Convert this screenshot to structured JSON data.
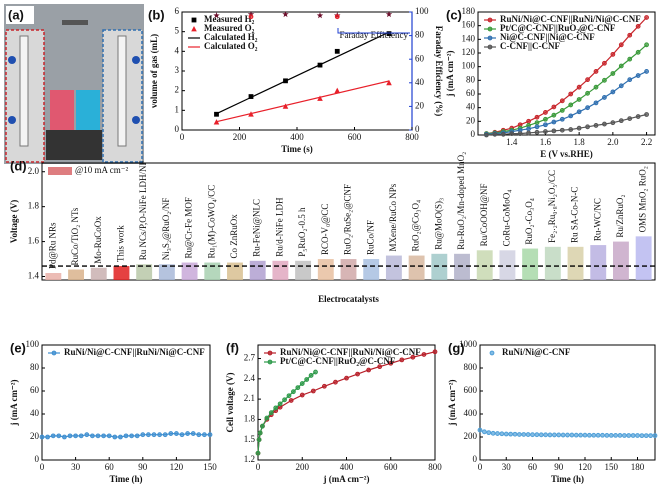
{
  "panel_a": {
    "label": "(a)"
  },
  "chart_data": [
    {
      "type": "line",
      "label": "(b)",
      "xlabel": "Time (s)",
      "ylabel": "volume of gas (mL)",
      "y2label": "Faraday Efficiency (%)",
      "annotation": "Faraday Efficiency",
      "xlim": [
        0,
        800
      ],
      "xticks": [
        0,
        200,
        400,
        600,
        800
      ],
      "ylim": [
        0,
        6
      ],
      "yticks": [
        0,
        1,
        2,
        3,
        4,
        5,
        6
      ],
      "y2lim": [
        0,
        100
      ],
      "y2ticks": [
        0,
        20,
        40,
        60,
        80,
        100
      ],
      "y2color": "#1f3fd0",
      "legend": "upper left",
      "series": [
        {
          "name": "Measured H₂",
          "color": "#000000",
          "mode": "markers",
          "marker": "square",
          "x": [
            120,
            240,
            360,
            480,
            540,
            720
          ],
          "values": [
            0.8,
            1.7,
            2.5,
            3.3,
            4.0,
            4.9
          ]
        },
        {
          "name": "Measured O₂",
          "color": "#e8202a",
          "mode": "markers",
          "marker": "triangle",
          "x": [
            120,
            240,
            360,
            480,
            540,
            720
          ],
          "values": [
            0.4,
            0.8,
            1.2,
            1.6,
            2.0,
            2.4
          ]
        },
        {
          "name": "Calculated H₂",
          "color": "#000000",
          "mode": "line",
          "x": [
            120,
            720
          ],
          "values": [
            0.83,
            4.98
          ]
        },
        {
          "name": "Calculated O₂",
          "color": "#e8202a",
          "mode": "line",
          "x": [
            120,
            720
          ],
          "values": [
            0.42,
            2.49
          ]
        },
        {
          "color": "#6b0d2a",
          "mode": "markers",
          "marker": "star",
          "axis": "y2",
          "x": [
            120,
            240,
            360,
            480,
            540,
            720
          ],
          "values": [
            97,
            98,
            98,
            97,
            97,
            98
          ]
        },
        {
          "color": "#e8202a",
          "mode": "markers",
          "marker": "circle",
          "axis": "y2",
          "x": [
            240,
            540
          ],
          "values": [
            96,
            96
          ]
        }
      ]
    },
    {
      "type": "line",
      "label": "(c)",
      "xlabel": "E (V vs.RHE)",
      "ylabel": "j (mA cm⁻²)",
      "legend": "upper left",
      "xlim": [
        1.2,
        2.25
      ],
      "xticks": [
        1.4,
        1.6,
        1.8,
        {
          "value": 2,
          "label": "2.0"
        },
        2.2
      ],
      "ylim": [
        0,
        180
      ],
      "yticks": [
        0,
        20,
        40,
        60,
        80,
        100,
        120,
        140,
        160,
        180
      ],
      "series": [
        {
          "name": "RuNi/Ni@C-CNF||RuNi/Ni@C-CNF",
          "color": "#c8262c",
          "mode": "line+markers",
          "marker": "circle",
          "x": [
            1.25,
            1.3,
            1.35,
            1.4,
            1.45,
            1.5,
            1.55,
            1.6,
            1.65,
            1.7,
            1.75,
            1.8,
            1.85,
            1.9,
            1.95,
            2.0,
            2.05,
            2.1,
            2.15,
            2.2
          ],
          "values": [
            2,
            4,
            7,
            10,
            15,
            20,
            26,
            33,
            41,
            50,
            60,
            70,
            81,
            93,
            105,
            118,
            132,
            146,
            159,
            172
          ]
        },
        {
          "name": "Pt/C@C-CNF||RuO₂@C-CNF",
          "color": "#3a9a3a",
          "mode": "line+markers",
          "marker": "circle",
          "x": [
            1.25,
            1.3,
            1.35,
            1.4,
            1.45,
            1.5,
            1.55,
            1.6,
            1.65,
            1.7,
            1.75,
            1.8,
            1.85,
            1.9,
            1.95,
            2.0,
            2.05,
            2.1,
            2.15,
            2.2
          ],
          "values": [
            2,
            3,
            5,
            7,
            10,
            14,
            18,
            23,
            29,
            36,
            44,
            52,
            61,
            70,
            80,
            90,
            101,
            111,
            121,
            132
          ]
        },
        {
          "name": "Ni@C-CNF||Ni@C-CNF",
          "color": "#2f6fb0",
          "mode": "line+markers",
          "marker": "circle",
          "x": [
            1.25,
            1.3,
            1.35,
            1.4,
            1.45,
            1.5,
            1.55,
            1.6,
            1.65,
            1.7,
            1.75,
            1.8,
            1.85,
            1.9,
            1.95,
            2.0,
            2.05,
            2.1,
            2.15,
            2.2
          ],
          "values": [
            1,
            2,
            3,
            5,
            7,
            9,
            12,
            15,
            19,
            23,
            28,
            34,
            40,
            47,
            55,
            63,
            72,
            81,
            87,
            93
          ]
        },
        {
          "name": "C-CNF||C-CNF",
          "color": "#555555",
          "mode": "line+markers",
          "marker": "circle",
          "x": [
            1.25,
            1.3,
            1.35,
            1.4,
            1.45,
            1.5,
            1.55,
            1.6,
            1.65,
            1.7,
            1.75,
            1.8,
            1.85,
            1.9,
            1.95,
            2.0,
            2.05,
            2.1,
            2.15,
            2.2
          ],
          "values": [
            0,
            1,
            1,
            2,
            2,
            3,
            4,
            5,
            6,
            7,
            8,
            10,
            12,
            14,
            16,
            18,
            21,
            24,
            27,
            30
          ]
        }
      ]
    },
    {
      "type": "bar",
      "label": "(d)",
      "xlabel": "Electrocatalysts",
      "ylabel": "Voltage (V)",
      "legend_label": "@10 mA cm⁻²",
      "legend_color": "#c8262c",
      "ylim": [
        1.38,
        2.05
      ],
      "yticks": [
        1.4,
        1.6,
        1.8,
        {
          "value": 2,
          "label": "2.0"
        }
      ],
      "reference_line": 1.46,
      "categories": [
        "Pd@Ru NRs",
        "RuCo/TiO₂ NTs",
        "Mo-RuCoOx",
        "This work",
        "Ru NCs/P,O-NiFe LDH/NF",
        "Ni₃S₂@RuO₂/NF",
        "Ru@Cr-Fe MOF",
        "Ru₁(M)-CoWO₄/CC",
        "Co ZnRuOx",
        "Ru-FeNi@NLC",
        "Ru/d-NiFe LDH",
        "P₅RuO₂-0.5 h",
        "RCO-V₀@CC",
        "RuO₂/RuSe₂@CNF",
        "RuCo/NF",
        "MXene/RuCo NPs",
        "RuO₂@Co₃O₄",
        "Ru@MoO(S)₃",
        "Ru-RuO₂/Mn-doped MnO₂",
        "Ru/CoOOH@NF",
        "CoRu-CoMoO₄",
        "RuO₂-Co₃O₄",
        "Fe₂.₂Ru₀.₈Ni₂O₅/CC",
        "Ru SA-Co-N-C",
        "Ru-WC/NC",
        "Ru/ZnRuO₂",
        "OMS MnO₂ RuO₂"
      ],
      "values": [
        1.42,
        1.44,
        1.45,
        1.46,
        1.47,
        1.47,
        1.48,
        1.48,
        1.48,
        1.49,
        1.49,
        1.49,
        1.5,
        1.5,
        1.5,
        1.52,
        1.52,
        1.53,
        1.53,
        1.55,
        1.55,
        1.56,
        1.57,
        1.57,
        1.58,
        1.6,
        1.63
      ],
      "colors": [
        "#e9b0a8",
        "#d9b38c",
        "#c9b0b0",
        "#e02020",
        "#b8c8a8",
        "#a8b8d8",
        "#c8a8d8",
        "#a8d0b0",
        "#d8c090",
        "#b0a0d0",
        "#e0a8c0",
        "#c0c0c0",
        "#e8c0a0",
        "#d0a8a8",
        "#a8c0e0",
        "#b8b8d8",
        "#d8b8a0",
        "#a0c8c8",
        "#b0b0c8",
        "#c8d8b0",
        "#d0d0e0",
        "#a8d8a8",
        "#c0d8c0",
        "#d8d0a8",
        "#b8b0e0",
        "#c8a8c8",
        "#b8b8f0"
      ]
    },
    {
      "type": "line",
      "label": "(e)",
      "xlabel": "Time (h)",
      "ylabel": "j (mA cm⁻²)",
      "legend": "upper left",
      "xlim": [
        0,
        150
      ],
      "xticks": [
        0,
        30,
        60,
        90,
        120,
        150
      ],
      "ylim": [
        0,
        100
      ],
      "yticks": [
        0,
        20,
        40,
        60,
        80,
        100
      ],
      "series": [
        {
          "name": "RuNi/Ni@C-CNF||RuNi/Ni@C-CNF",
          "color": "#3f8fd0",
          "mode": "line+markers",
          "marker": "circle",
          "x": [
            0,
            5,
            10,
            15,
            20,
            25,
            30,
            35,
            40,
            45,
            50,
            55,
            60,
            65,
            70,
            75,
            80,
            85,
            90,
            95,
            100,
            105,
            110,
            115,
            120,
            125,
            130,
            135,
            140,
            145,
            150
          ],
          "values": [
            20,
            20,
            21,
            21,
            20,
            21,
            21,
            21,
            22,
            21,
            21,
            21,
            21,
            20,
            20,
            21,
            21,
            21,
            22,
            22,
            22,
            22,
            22,
            23,
            23,
            22,
            23,
            23,
            22,
            22,
            22
          ]
        }
      ]
    },
    {
      "type": "line",
      "label": "(f)",
      "xlabel": "j (mA cm⁻²)",
      "ylabel": "Cell voltage (V)",
      "legend": "upper left",
      "xlim": [
        0,
        800
      ],
      "xticks": [
        0,
        200,
        400,
        600,
        800
      ],
      "ylim": [
        1.2,
        2.9
      ],
      "yticks": [
        1.2,
        1.5,
        1.8,
        2.1,
        2.4,
        2.7
      ],
      "series": [
        {
          "name": "RuNi/Ni@C-CNF||RuNi/Ni@C-CNF",
          "color": "#b8202a",
          "mode": "line+markers",
          "marker": "circle",
          "x": [
            0,
            5,
            10,
            20,
            40,
            60,
            80,
            100,
            150,
            200,
            250,
            300,
            350,
            400,
            450,
            500,
            550,
            600,
            650,
            700,
            750,
            800
          ],
          "values": [
            1.3,
            1.5,
            1.6,
            1.7,
            1.8,
            1.87,
            1.93,
            1.98,
            2.08,
            2.16,
            2.22,
            2.29,
            2.35,
            2.41,
            2.47,
            2.53,
            2.58,
            2.63,
            2.68,
            2.72,
            2.76,
            2.8
          ]
        },
        {
          "name": "Pt/C@C-CNF||RuO₂@C-CNF",
          "color": "#2e9a4a",
          "mode": "line+markers",
          "marker": "circle",
          "x": [
            0,
            5,
            10,
            20,
            40,
            60,
            80,
            100,
            120,
            140,
            160,
            180,
            200,
            220,
            240,
            260
          ],
          "values": [
            1.3,
            1.5,
            1.6,
            1.7,
            1.82,
            1.9,
            1.97,
            2.03,
            2.09,
            2.15,
            2.21,
            2.27,
            2.33,
            2.39,
            2.45,
            2.5
          ]
        }
      ]
    },
    {
      "type": "line",
      "label": "(g)",
      "xlabel": "Time (h)",
      "ylabel": "j (mA cm⁻²)",
      "legend": "upper left",
      "xlim": [
        0,
        200
      ],
      "xticks": [
        0,
        30,
        60,
        90,
        120,
        150,
        180
      ],
      "ylim": [
        0,
        1000
      ],
      "yticks": [
        0,
        200,
        400,
        600,
        800,
        1000
      ],
      "series": [
        {
          "name": "RuNi/Ni@C-CNF",
          "color": "#4f9fd8",
          "mode": "markers",
          "marker": "circle",
          "x": [
            0,
            5,
            10,
            15,
            20,
            25,
            30,
            35,
            40,
            45,
            50,
            55,
            60,
            65,
            70,
            75,
            80,
            85,
            90,
            95,
            100,
            105,
            110,
            115,
            120,
            125,
            130,
            135,
            140,
            145,
            150,
            155,
            160,
            165,
            170,
            175,
            180,
            185,
            190,
            195,
            200
          ],
          "values": [
            260,
            245,
            238,
            232,
            230,
            228,
            226,
            225,
            224,
            222,
            222,
            221,
            220,
            220,
            219,
            219,
            218,
            218,
            218,
            217,
            217,
            217,
            216,
            216,
            216,
            215,
            215,
            215,
            215,
            214,
            214,
            214,
            214,
            213,
            213,
            213,
            213,
            212,
            212,
            212,
            212
          ]
        }
      ]
    }
  ]
}
